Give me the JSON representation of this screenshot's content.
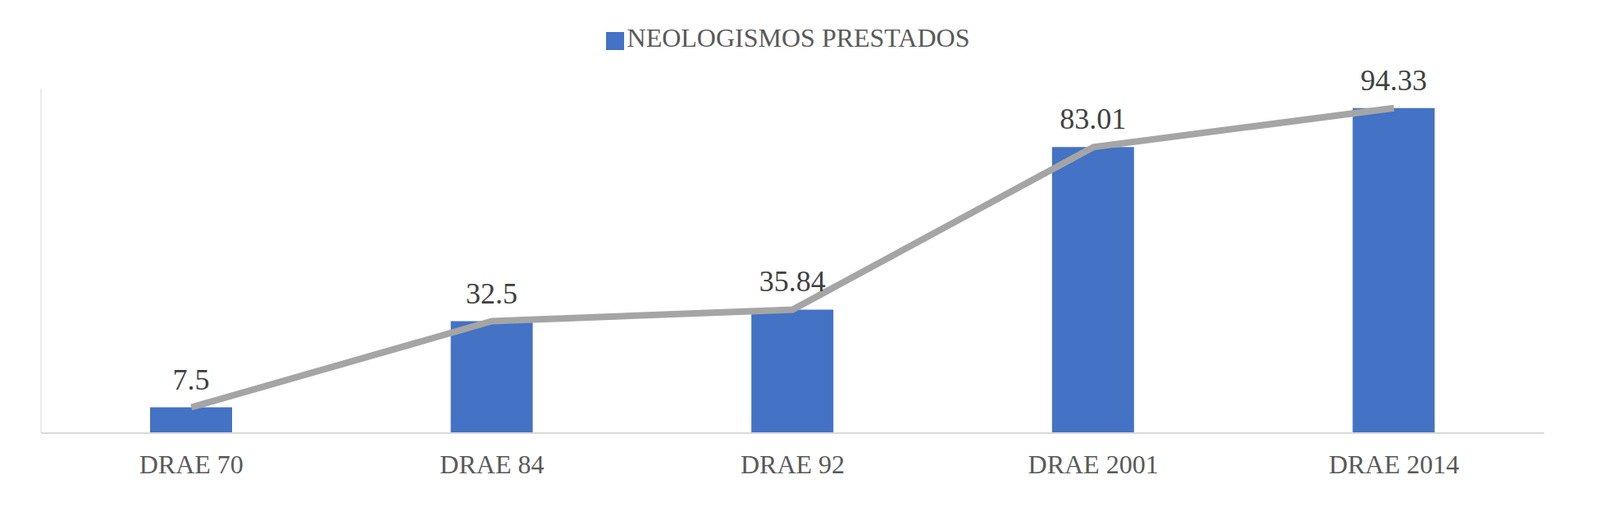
{
  "chart_data": {
    "type": "bar",
    "categories": [
      "DRAE 70",
      "DRAE 84",
      "DRAE 92",
      "DRAE 2001",
      "DRAE 2014"
    ],
    "series": [
      {
        "name": "NEOLOGISMOS PRESTADOS",
        "type": "bar",
        "color": "#4472c4",
        "values": [
          7.5,
          32.5,
          35.84,
          83.01,
          94.33
        ]
      },
      {
        "type": "line",
        "color": "#a5a5a5",
        "values": [
          7.5,
          32.5,
          35.84,
          83.01,
          94.33
        ]
      }
    ],
    "ylim": [
      0,
      100
    ],
    "yticks": [
      0,
      20,
      40,
      60,
      80,
      100
    ],
    "grid": false,
    "legend": "top",
    "data_labels": true,
    "tick_labels": "x"
  }
}
